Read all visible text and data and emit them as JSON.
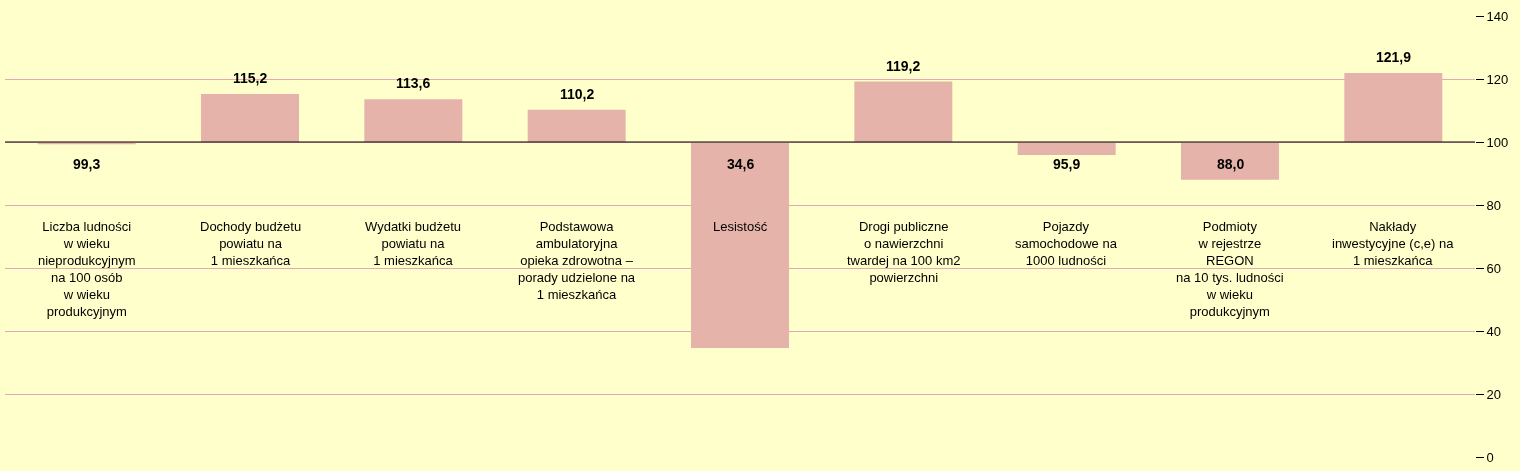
{
  "chart_data": {
    "type": "bar",
    "categories": [
      "Liczba ludności\nw wieku\nnieprodukcyjnym\nna 100 osób\nw wieku\nprodukcyjnym",
      "Dochody budżetu\npowiatu na\n1 mieszkańca",
      "Wydatki budżetu\npowiatu na\n1 mieszkańca",
      "Podstawowa\nambulatoryjna\nopieka zdrowotna –\nporady udzielone na\n1 mieszkańca",
      "Lesistość",
      "Drogi publiczne\no nawierzchni\ntwardej na 100 km2\npowierzchni",
      "Pojazdy\nsamochodowe na\n1000 ludności",
      "Podmioty\nw rejestrze\nREGON\nna 10 tys. ludności\nw wieku\nprodukcyjnym",
      "Nakłady\ninwestycyjne (c,e) na\n1 mieszkańca"
    ],
    "base": [
      100,
      100,
      100,
      100,
      100,
      100,
      100,
      100,
      100
    ],
    "values": [
      -0.7,
      15.2,
      13.6,
      10.2,
      -65.4,
      19.2,
      -4.1,
      -12.0,
      21.9
    ],
    "value_labels": [
      "99,3",
      "115,2",
      "113,6",
      "110,2",
      "34,6",
      "119,2",
      "95,9",
      "88,0",
      "121,9"
    ],
    "color": "#e6b3aa",
    "ylim": [
      0,
      140
    ],
    "yticks": [
      0,
      20,
      40,
      60,
      80,
      100,
      120,
      140
    ],
    "ref_lines": [
      {
        "axis": "y",
        "value": 100,
        "color": "#000000"
      }
    ],
    "grid": "y",
    "legend": false
  }
}
